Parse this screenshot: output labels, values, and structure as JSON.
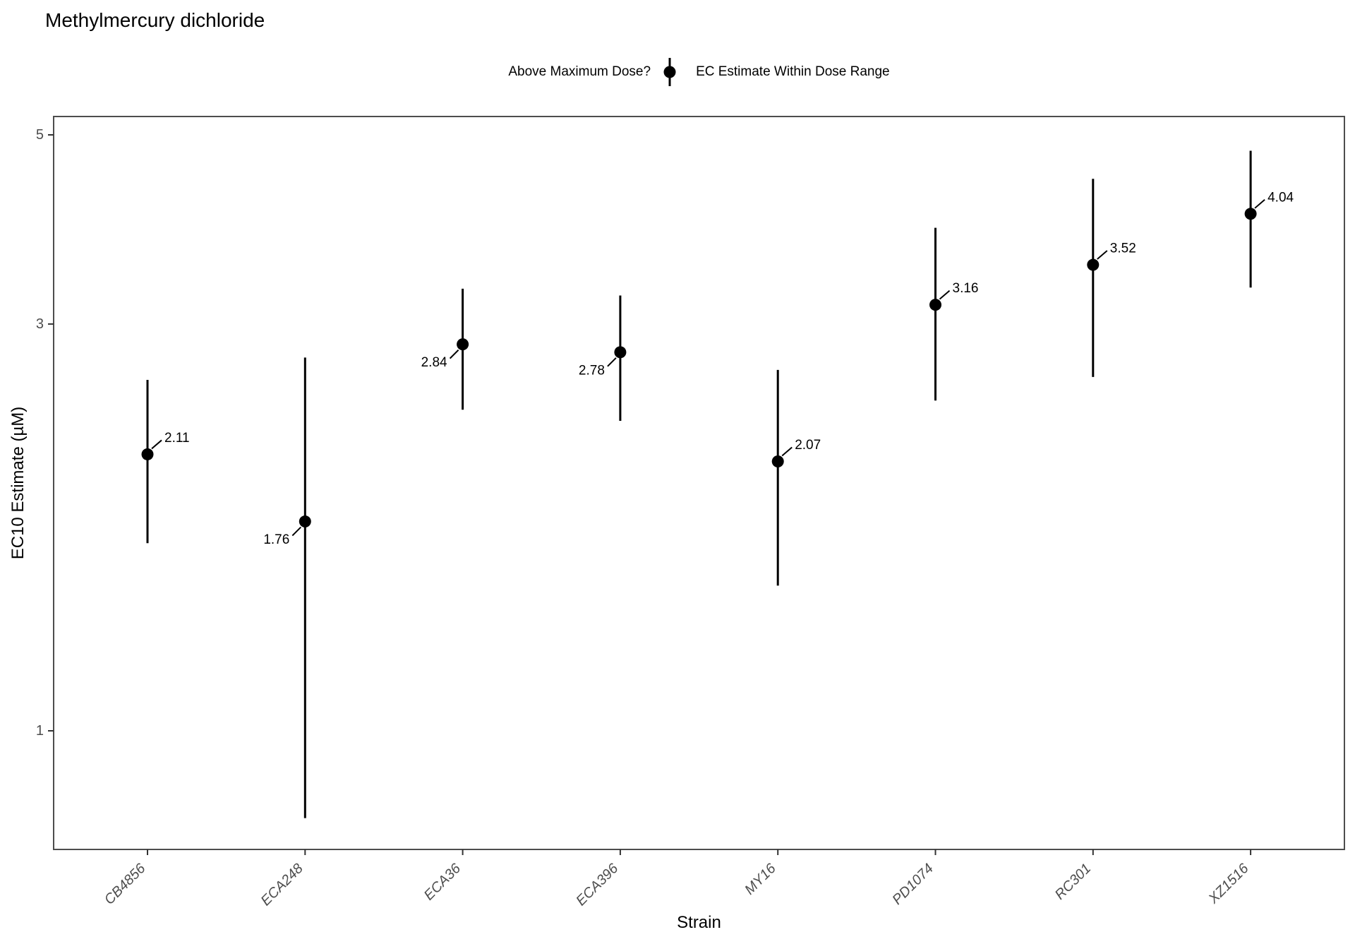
{
  "title": "Methylmercury dichloride",
  "legend": {
    "title": "Above Maximum Dose?",
    "item": "EC Estimate Within Dose Range",
    "key_icon": "pointrange-icon"
  },
  "chart_data": {
    "type": "pointrange",
    "title": "Methylmercury dichloride",
    "xlabel": "Strain",
    "ylabel": "EC10 Estimate (µM)",
    "y_scale": "log10",
    "y_ticks": [
      "1",
      "3",
      "5"
    ],
    "y_tick_values": [
      1,
      3,
      5
    ],
    "y_domain": [
      0.73,
      5.25
    ],
    "grid": false,
    "legend_position": "top-center",
    "categories": [
      "CB4856",
      "ECA248",
      "ECA36",
      "ECA396",
      "MY16",
      "PD1074",
      "RC301",
      "XZ1516"
    ],
    "points": [
      {
        "strain": "CB4856",
        "estimate": 2.11,
        "label": "2.11",
        "ci_low": 1.66,
        "ci_high": 2.58,
        "label_side": "upper-right"
      },
      {
        "strain": "ECA248",
        "estimate": 1.76,
        "label": "1.76",
        "ci_low": 0.79,
        "ci_high": 2.74,
        "label_side": "lower-left"
      },
      {
        "strain": "ECA36",
        "estimate": 2.84,
        "label": "2.84",
        "ci_low": 2.38,
        "ci_high": 3.3,
        "label_side": "lower-left"
      },
      {
        "strain": "ECA396",
        "estimate": 2.78,
        "label": "2.78",
        "ci_low": 2.31,
        "ci_high": 3.24,
        "label_side": "lower-left"
      },
      {
        "strain": "MY16",
        "estimate": 2.07,
        "label": "2.07",
        "ci_low": 1.48,
        "ci_high": 2.65,
        "label_side": "upper-right"
      },
      {
        "strain": "PD1074",
        "estimate": 3.16,
        "label": "3.16",
        "ci_low": 2.44,
        "ci_high": 3.89,
        "label_side": "upper-right"
      },
      {
        "strain": "RC301",
        "estimate": 3.52,
        "label": "3.52",
        "ci_low": 2.6,
        "ci_high": 4.44,
        "label_side": "upper-right"
      },
      {
        "strain": "XZ1516",
        "estimate": 4.04,
        "label": "4.04",
        "ci_low": 3.31,
        "ci_high": 4.79,
        "label_side": "upper-right"
      }
    ],
    "colors": {
      "point": "#000000",
      "range_line": "#000000",
      "data_label": "#000000",
      "tick_label": "#4D4D4D",
      "panel_border": "#4D4D4D",
      "tick_mark": "#333333",
      "background": "#FFFFFF"
    }
  }
}
